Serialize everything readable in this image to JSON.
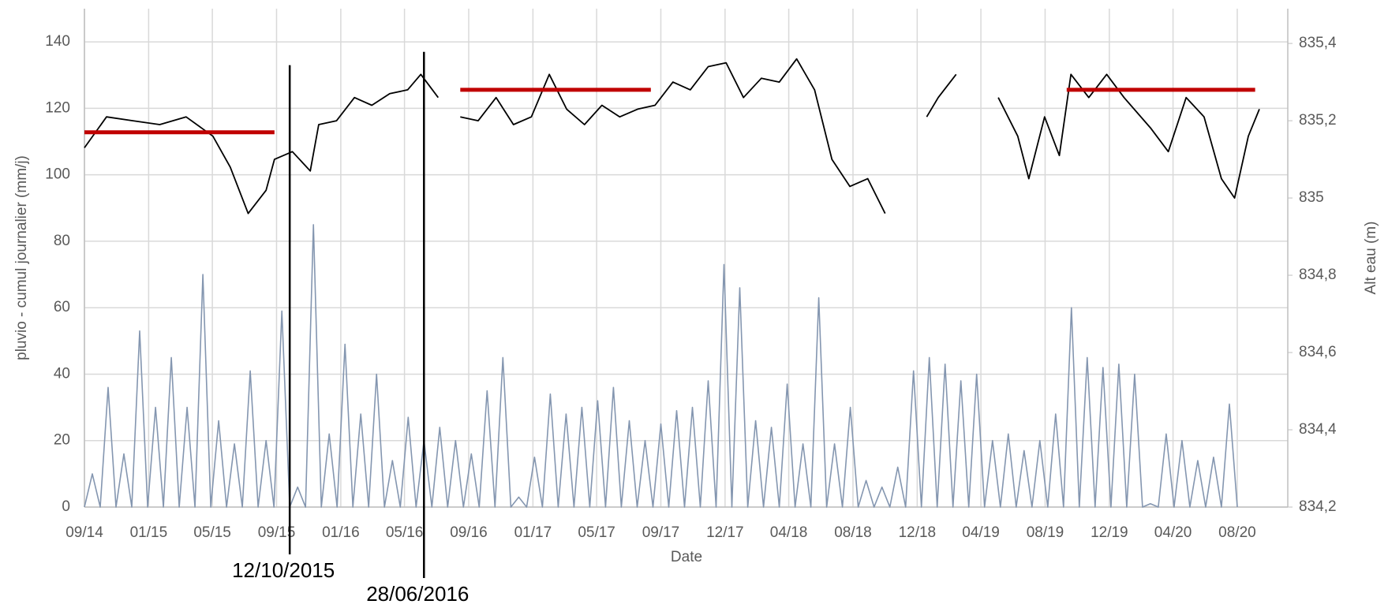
{
  "chart_data": {
    "type": "line",
    "xlabel": "Date",
    "ylabel": "pluvio - cumul journalier (mm/j)",
    "y2label": "Alt eau (m)",
    "grid": true,
    "xlim": [
      0,
      2286
    ],
    "xticks": [
      {
        "value": 0,
        "label": "09/14"
      },
      {
        "value": 122,
        "label": "01/15"
      },
      {
        "value": 243,
        "label": "05/15"
      },
      {
        "value": 365,
        "label": "09/15"
      },
      {
        "value": 487,
        "label": "01/16"
      },
      {
        "value": 608,
        "label": "05/16"
      },
      {
        "value": 730,
        "label": "09/16"
      },
      {
        "value": 852,
        "label": "01/17"
      },
      {
        "value": 973,
        "label": "05/17"
      },
      {
        "value": 1095,
        "label": "09/17"
      },
      {
        "value": 1217,
        "label": "12/17"
      },
      {
        "value": 1338,
        "label": "04/18"
      },
      {
        "value": 1460,
        "label": "08/18"
      },
      {
        "value": 1582,
        "label": "12/18"
      },
      {
        "value": 1703,
        "label": "04/19"
      },
      {
        "value": 1825,
        "label": "08/19"
      },
      {
        "value": 1947,
        "label": "12/19"
      },
      {
        "value": 2068,
        "label": "04/20"
      },
      {
        "value": 2190,
        "label": "08/20"
      }
    ],
    "ylim": [
      0,
      150
    ],
    "yticks": [
      0,
      20,
      40,
      60,
      80,
      100,
      120,
      140
    ],
    "y2lim": [
      834.2,
      835.49
    ],
    "y2ticks": [
      {
        "value": 834.2,
        "label": "834,2"
      },
      {
        "value": 834.4,
        "label": "834,4"
      },
      {
        "value": 834.6,
        "label": "834,6"
      },
      {
        "value": 834.8,
        "label": "834,8"
      },
      835,
      {
        "value": 835.2,
        "label": "835,2"
      },
      {
        "value": 835.4,
        "label": "835,4"
      }
    ],
    "series": [
      {
        "color": "#8496b0",
        "axis": "y",
        "x": [
          0,
          15,
          30,
          45,
          60,
          75,
          90,
          105,
          120,
          135,
          150,
          165,
          180,
          195,
          210,
          225,
          240,
          255,
          270,
          285,
          300,
          315,
          330,
          345,
          360,
          375,
          390,
          405,
          420,
          435,
          450,
          465,
          480,
          495,
          510,
          525,
          540,
          555,
          570,
          585,
          600,
          615,
          630,
          645,
          660,
          675,
          690,
          705,
          720,
          735,
          750,
          765,
          780,
          795,
          810,
          825,
          840,
          855,
          870,
          885,
          900,
          915,
          930,
          945,
          960,
          975,
          990,
          1005,
          1020,
          1035,
          1050,
          1065,
          1080,
          1095,
          1110,
          1125,
          1140,
          1155,
          1170,
          1185,
          1200,
          1215,
          1230,
          1245,
          1260,
          1275,
          1290,
          1305,
          1320,
          1335,
          1350,
          1365,
          1380,
          1395,
          1410,
          1425,
          1440,
          1455,
          1470,
          1485,
          1500,
          1515,
          1530,
          1545,
          1560,
          1575,
          1590,
          1605,
          1620,
          1635,
          1650,
          1665,
          1680,
          1695,
          1710,
          1725,
          1740,
          1755,
          1770,
          1785,
          1800,
          1815,
          1830,
          1845,
          1860,
          1875,
          1890,
          1905,
          1920,
          1935,
          1950,
          1965,
          1980,
          1995,
          2010,
          2025,
          2040,
          2055,
          2070,
          2085,
          2100,
          2115,
          2130,
          2145,
          2160,
          2175,
          2190
        ],
        "values": [
          0,
          10,
          0,
          36,
          0,
          16,
          0,
          53,
          0,
          30,
          0,
          45,
          0,
          30,
          0,
          70,
          0,
          26,
          0,
          19,
          0,
          41,
          0,
          20,
          0,
          59,
          0,
          6,
          0,
          85,
          0,
          22,
          0,
          49,
          0,
          28,
          0,
          40,
          0,
          14,
          0,
          27,
          0,
          20,
          0,
          24,
          0,
          20,
          0,
          16,
          0,
          35,
          0,
          45,
          0,
          3,
          0,
          15,
          0,
          34,
          0,
          28,
          0,
          30,
          0,
          32,
          0,
          36,
          0,
          26,
          0,
          20,
          0,
          25,
          0,
          29,
          0,
          30,
          0,
          38,
          0,
          73,
          0,
          66,
          0,
          26,
          0,
          24,
          0,
          37,
          0,
          19,
          0,
          63,
          0,
          19,
          0,
          30,
          0,
          8,
          0,
          6,
          0,
          12,
          0,
          41,
          0,
          45,
          0,
          43,
          0,
          38,
          0,
          40,
          0,
          20,
          0,
          22,
          0,
          17,
          0,
          20,
          0,
          28,
          0,
          60,
          0,
          45,
          0,
          42,
          0,
          43,
          0,
          40,
          0,
          1,
          0,
          22,
          0,
          20,
          0,
          14,
          0,
          15,
          0,
          31,
          0
        ]
      },
      {
        "color": "#000000",
        "axis": "y2",
        "x": [
          0,
          42,
          92,
          143,
          193,
          244,
          277,
          311,
          345,
          361,
          395,
          429,
          445,
          479,
          513,
          546,
          580,
          614,
          639,
          672,
          690,
          714,
          748,
          782,
          815,
          849,
          883,
          916,
          950,
          983,
          1017,
          1051,
          1084,
          1118,
          1151,
          1185,
          1219,
          1252,
          1286,
          1320,
          1353,
          1387,
          1420,
          1454,
          1488,
          1521,
          1560,
          1600,
          1622,
          1656,
          1700,
          1736,
          1773,
          1794,
          1824,
          1852,
          1874,
          1908,
          1942,
          1975,
          2026,
          2059,
          2093,
          2127,
          2160,
          2185,
          2211,
          2232
        ],
        "values": [
          835.13,
          835.21,
          835.2,
          835.19,
          835.21,
          835.16,
          835.08,
          834.96,
          835.02,
          835.1,
          835.12,
          835.07,
          835.19,
          835.2,
          835.26,
          835.24,
          835.27,
          835.28,
          835.32,
          835.26,
          null,
          835.21,
          835.2,
          835.26,
          835.19,
          835.21,
          835.32,
          835.23,
          835.19,
          835.24,
          835.21,
          835.23,
          835.24,
          835.3,
          835.28,
          835.34,
          835.35,
          835.26,
          835.31,
          835.3,
          835.36,
          835.28,
          835.1,
          835.03,
          835.05,
          834.96,
          null,
          835.21,
          835.26,
          835.32,
          null,
          835.26,
          835.16,
          835.05,
          835.21,
          835.11,
          835.32,
          835.26,
          835.32,
          835.26,
          835.18,
          835.12,
          835.26,
          835.21,
          835.05,
          835,
          835.16,
          835.23
        ]
      }
    ],
    "reference_lines": [
      {
        "x": [
          0,
          361
        ],
        "value": 835.17,
        "color": "#c00000"
      },
      {
        "x": [
          714,
          1076
        ],
        "value": 835.28,
        "color": "#c00000"
      },
      {
        "x": [
          1866,
          2224
        ],
        "value": 835.28,
        "color": "#c00000"
      }
    ],
    "annotations": [
      {
        "text": "12/10/2015",
        "x": 390,
        "y": 133
      },
      {
        "text": "28/06/2016",
        "x": 645,
        "y": 137
      }
    ]
  }
}
